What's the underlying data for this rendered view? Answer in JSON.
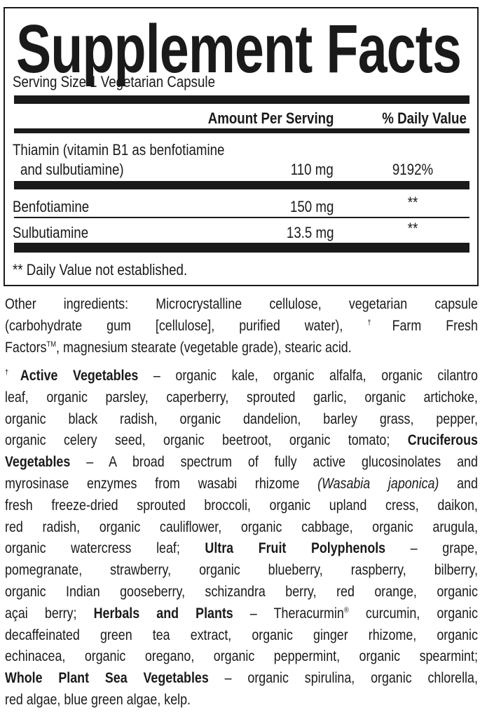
{
  "panel": {
    "title": "Supplement Facts",
    "serving_size": "Serving Size 1 Vegetarian Capsule",
    "header_amount": "Amount Per Serving",
    "header_dv": "% Daily Value",
    "rows": [
      {
        "name_line1": "Thiamin (vitamin B1 as benfotiamine",
        "name_line2": "and sulbutiamine)",
        "amount": "110 mg",
        "dv": "9192%"
      },
      {
        "name_line1": "Benfotiamine",
        "amount": "150 mg",
        "dv": "**"
      },
      {
        "name_line1": "Sulbutiamine",
        "amount": "13.5 mg",
        "dv": "**"
      }
    ],
    "footnote": "** Daily Value not established."
  },
  "paragraphs": [
    [
      [
        {
          "t": "Other ingredients: Microcrystalline cellulose, vegetarian capsule"
        }
      ],
      [
        {
          "t": "(carbohydrate gum [cellulose], purified water), "
        },
        {
          "t": "†",
          "sup": true
        },
        {
          "t": "Farm Fresh"
        }
      ],
      [
        {
          "t": "Factors"
        },
        {
          "t": "TM",
          "sup": true
        },
        {
          "t": ", magnesium stearate (vegetable grade), stearic acid."
        }
      ]
    ],
    [
      [
        {
          "t": "†",
          "sup": true
        },
        {
          "t": "Active Vegetables",
          "b": true
        },
        {
          "t": " – organic kale, organic alfalfa, organic cilantro"
        }
      ],
      [
        {
          "t": "leaf, organic parsley, caperberry, sprouted garlic, organic artichoke,"
        }
      ],
      [
        {
          "t": "organic black radish, organic dandelion, barley grass, pepper,"
        }
      ],
      [
        {
          "t": "organic celery seed, organic beetroot, organic tomato; "
        },
        {
          "t": "Cruciferous",
          "b": true
        }
      ],
      [
        {
          "t": "Vegetables",
          "b": true
        },
        {
          "t": " – A broad spectrum of fully active glucosinolates and"
        }
      ],
      [
        {
          "t": "myrosinase enzymes from wasabi rhizome "
        },
        {
          "t": "(Wasabia japonica)",
          "i": true
        },
        {
          "t": " and"
        }
      ],
      [
        {
          "t": "fresh freeze-dried sprouted broccoli, organic upland cress, daikon,"
        }
      ],
      [
        {
          "t": "red radish, organic cauliflower, organic cabbage, organic arugula,"
        }
      ],
      [
        {
          "t": "organic watercress leaf; "
        },
        {
          "t": "Ultra Fruit Polyphenols",
          "b": true
        },
        {
          "t": " – grape,"
        }
      ],
      [
        {
          "t": "pomegranate, strawberry, organic blueberry, raspberry, bilberry,"
        }
      ],
      [
        {
          "t": "organic Indian gooseberry, schizandra berry, red orange, organic"
        }
      ],
      [
        {
          "t": "açai berry; "
        },
        {
          "t": "Herbals and Plants",
          "b": true
        },
        {
          "t": " – Theracurmin"
        },
        {
          "t": "®",
          "sup": true
        },
        {
          "t": " curcumin, organic"
        }
      ],
      [
        {
          "t": "decaffeinated green tea extract, organic ginger rhizome, organic"
        }
      ],
      [
        {
          "t": "echinacea, organic oregano, organic peppermint, organic spearmint;"
        }
      ],
      [
        {
          "t": "Whole Plant Sea Vegetables",
          "b": true
        },
        {
          "t": " – organic spirulina, organic chlorella,"
        }
      ],
      [
        {
          "t": "red algae, blue green algae, kelp."
        }
      ]
    ]
  ]
}
